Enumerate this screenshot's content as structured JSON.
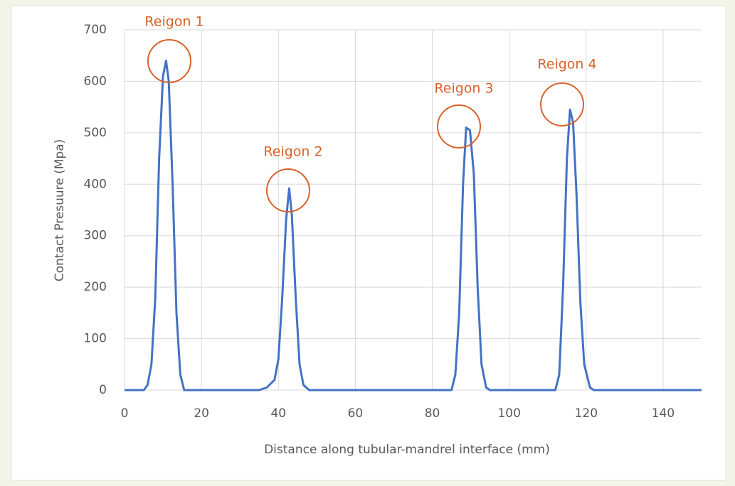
{
  "chart_data": {
    "type": "line",
    "xlabel": "Distance along tubular-mandrel interface (mm)",
    "ylabel": "Contact Presuure (Mpa)",
    "x": [
      0,
      5,
      6,
      7,
      8,
      9,
      10,
      10.8,
      11.5,
      12.5,
      13.5,
      14.5,
      15.5,
      35,
      37,
      39,
      40,
      41,
      42,
      42.8,
      43.5,
      44.5,
      45.5,
      46.5,
      48,
      85,
      86,
      87,
      88,
      88.8,
      89.8,
      90.8,
      91.8,
      92.8,
      94,
      95,
      112,
      113,
      114,
      115,
      115.8,
      116.6,
      117.5,
      118.5,
      119.5,
      121,
      122,
      150
    ],
    "series": [
      {
        "name": "Contact Pressure",
        "color": "#4472c4",
        "values": [
          0,
          0,
          10,
          50,
          180,
          450,
          610,
          640,
          600,
          400,
          150,
          30,
          0,
          0,
          5,
          20,
          60,
          180,
          330,
          392,
          340,
          180,
          50,
          10,
          0,
          0,
          30,
          150,
          400,
          510,
          505,
          420,
          200,
          50,
          5,
          0,
          0,
          30,
          200,
          450,
          545,
          520,
          380,
          170,
          50,
          5,
          0,
          0
        ]
      }
    ],
    "xlim": [
      0,
      150
    ],
    "xticks": [
      0,
      20,
      40,
      60,
      80,
      100,
      120,
      140
    ],
    "ylim": [
      0,
      700
    ],
    "yticks": [
      0,
      100,
      200,
      300,
      400,
      500,
      600,
      700
    ],
    "grid": true,
    "annotations": [
      {
        "text": "Reigon 1",
        "color": "#d8622a"
      },
      {
        "text": "Reigon 2",
        "color": "#d8622a"
      },
      {
        "text": "Reigon 3",
        "color": "#d8622a"
      },
      {
        "text": "Reigon 4",
        "color": "#d8622a"
      }
    ]
  }
}
